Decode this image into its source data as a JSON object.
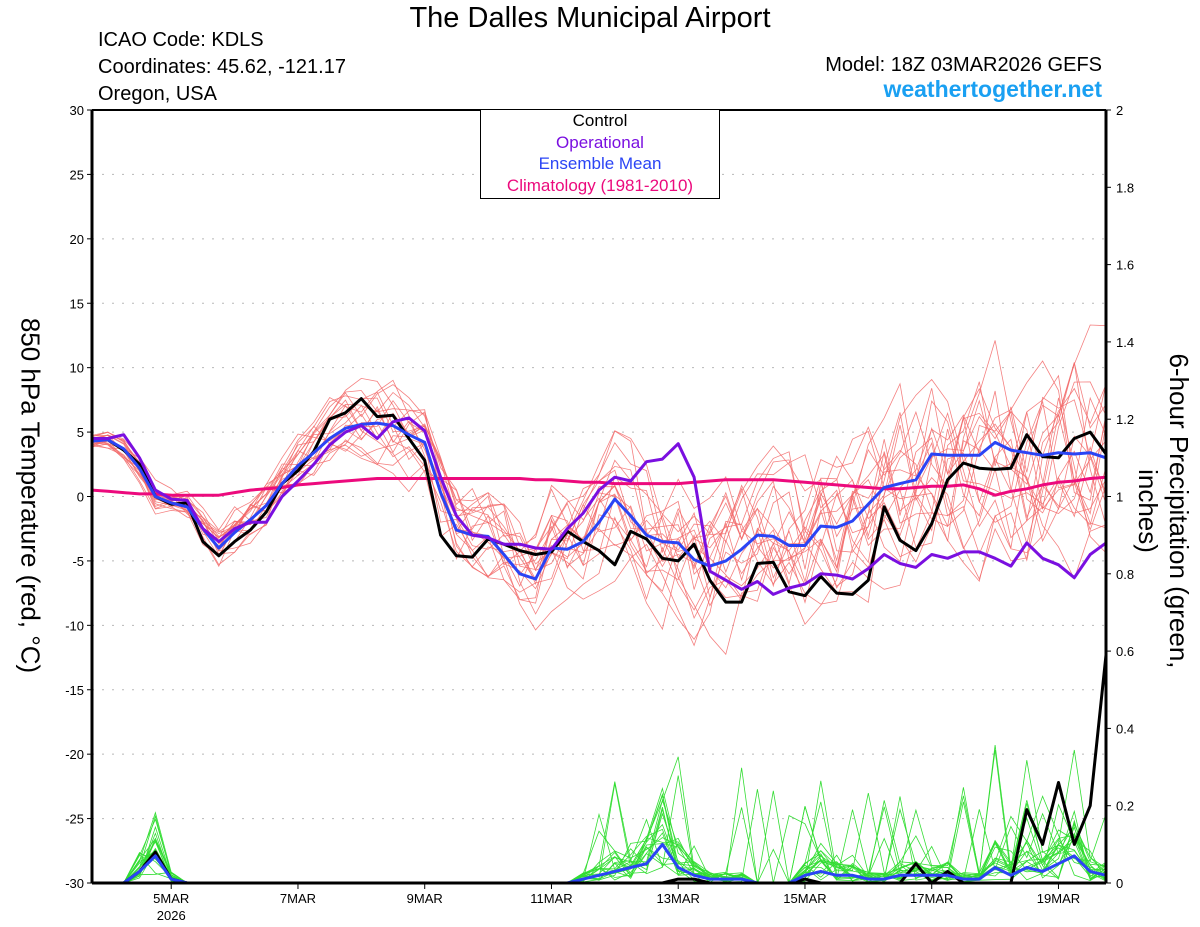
{
  "header": {
    "title": "The Dalles Municipal Airport",
    "icao": "ICAO Code: KDLS",
    "coordinates": "Coordinates: 45.62, -121.17",
    "region": "Oregon, USA",
    "model": "Model: 18Z 03MAR2026 GEFS",
    "site": "weathertogether.net"
  },
  "colors": {
    "control": "#000000",
    "operational": "#7a0fe0",
    "ensemble_mean": "#2a44f5",
    "climatology": "#ec0a7d",
    "members_temp": "#f26a6a",
    "members_precip": "#33dd33",
    "site": "#1aa0f2"
  },
  "chart_data": {
    "type": "line",
    "title": "The Dalles Municipal Airport",
    "ylabel": "850 hPa Temperature (red, °C)",
    "ylabel_right": "6-hour Precipitation (green, inches)",
    "ylim": [
      -30,
      30
    ],
    "ylim_right": [
      0,
      2
    ],
    "yticks": [
      "30",
      "25",
      "20",
      "15",
      "10",
      "5",
      "0",
      "-5",
      "-10",
      "-15",
      "-20",
      "-25",
      "-30"
    ],
    "yticks_right": [
      "2",
      "1.8",
      "1.6",
      "1.4",
      "1.2",
      "1",
      "0.8",
      "0.6",
      "0.4",
      "0.2",
      "0"
    ],
    "xticks": [
      {
        "label": "5MAR",
        "sub": "2026",
        "day": 5
      },
      {
        "label": "7MAR",
        "sub": "",
        "day": 7
      },
      {
        "label": "9MAR",
        "sub": "",
        "day": 9
      },
      {
        "label": "11MAR",
        "sub": "",
        "day": 11
      },
      {
        "label": "13MAR",
        "sub": "",
        "day": 13
      },
      {
        "label": "15MAR",
        "sub": "",
        "day": 15
      },
      {
        "label": "17MAR",
        "sub": "",
        "day": 17
      },
      {
        "label": "19MAR",
        "sub": "",
        "day": 19
      }
    ],
    "x_start_day": 3.75,
    "x_step_days": 0.25,
    "x_end_day": 19.75,
    "grid": true,
    "legend": {
      "position": "top-center",
      "entries": [
        {
          "label": "Control",
          "color_key": "control"
        },
        {
          "label": "Operational",
          "color_key": "operational"
        },
        {
          "label": "Ensemble Mean",
          "color_key": "ensemble_mean"
        },
        {
          "label": "Climatology (1981-2010)",
          "color_key": "climatology"
        }
      ]
    },
    "series": [
      {
        "name": "Control",
        "axis": "temp",
        "values": [
          4.4,
          4.4,
          3.6,
          2.5,
          0,
          -0.6,
          -0.5,
          -3.5,
          -4.6,
          -3.5,
          -2.6,
          -1.2,
          1,
          2,
          3.5,
          6,
          6.5,
          7.6,
          6.2,
          6.3,
          4.5,
          2.8,
          -3,
          -4.6,
          -4.7,
          -3.3,
          -3.7,
          -4.2,
          -4.5,
          -4.3,
          -2.7,
          -3.5,
          -4.2,
          -5.3,
          -2.7,
          -3.3,
          -4.8,
          -5,
          -3.7,
          -6.5,
          -8.2,
          -8.2,
          -5.2,
          -5.1,
          -7.4,
          -7.7,
          -6.2,
          -7.5,
          -7.6,
          -6.5,
          -0.8,
          -3.4,
          -4.2,
          -2.1,
          1.3,
          2.6,
          2.2,
          2.1,
          2.2,
          4.8,
          3.1,
          3,
          4.5,
          5,
          3.3
        ]
      },
      {
        "name": "Operational",
        "axis": "temp",
        "values": [
          4.5,
          4.5,
          4.8,
          3,
          0.5,
          -0.2,
          -0.3,
          -2.5,
          -3.5,
          -2.5,
          -2,
          -2,
          0,
          1.2,
          2.5,
          4,
          5,
          5.5,
          4.5,
          5.8,
          6.1,
          5.1,
          1.5,
          -1.5,
          -3,
          -3.2,
          -3.7,
          -3.7,
          -4,
          -4.1,
          -2.5,
          -1.3,
          0.5,
          1.5,
          1.2,
          2.7,
          2.9,
          4.1,
          1.5,
          -5.8,
          -6.5,
          -7.2,
          -6.6,
          -7.6,
          -7.1,
          -6.8,
          -6,
          -6.1,
          -6.4,
          -5.6,
          -4.5,
          -5.2,
          -5.5,
          -4.5,
          -4.8,
          -4.3,
          -4.3,
          -4.8,
          -5.4,
          -3.6,
          -4.8,
          -5.3,
          -6.3,
          -4.5,
          -3.6
        ]
      },
      {
        "name": "Ensemble Mean",
        "axis": "temp",
        "values": [
          4.3,
          4.4,
          3.7,
          2.2,
          0,
          -0.5,
          -0.8,
          -2.5,
          -4,
          -2.8,
          -1.8,
          -0.7,
          1,
          2.4,
          3.4,
          4.5,
          5.3,
          5.6,
          5.7,
          5.5,
          4.8,
          4.2,
          0.3,
          -2.6,
          -3,
          -3.1,
          -4.5,
          -6,
          -6.4,
          -4,
          -4.1,
          -3.5,
          -2,
          -0.2,
          -1.5,
          -3,
          -3.5,
          -3.6,
          -4.9,
          -5.4,
          -5,
          -4.1,
          -3,
          -3.1,
          -3.8,
          -3.8,
          -2.3,
          -2.4,
          -1.9,
          -0.6,
          0.7,
          1,
          1.3,
          3.3,
          3.2,
          3.2,
          3.2,
          4.2,
          3.6,
          3.4,
          3.2,
          3.4,
          3.3,
          3.4,
          3
        ]
      },
      {
        "name": "Climatology (1981-2010)",
        "axis": "temp",
        "values": [
          0.5,
          0.4,
          0.3,
          0.2,
          0.2,
          0.1,
          0.1,
          0.1,
          0.1,
          0.3,
          0.5,
          0.6,
          0.7,
          0.9,
          1,
          1.1,
          1.2,
          1.3,
          1.4,
          1.4,
          1.4,
          1.4,
          1.4,
          1.4,
          1.4,
          1.4,
          1.4,
          1.4,
          1.3,
          1.3,
          1.2,
          1.1,
          1.1,
          1.0,
          1.0,
          1.0,
          1.0,
          1.0,
          1.1,
          1.2,
          1.3,
          1.3,
          1.3,
          1.3,
          1.2,
          1.1,
          1.0,
          0.9,
          0.8,
          0.7,
          0.6,
          0.6,
          0.7,
          0.8,
          0.8,
          0.9,
          0.6,
          0.1,
          0.4,
          0.6,
          0.9,
          1.1,
          1.2,
          1.4,
          1.5
        ]
      },
      {
        "name": "Control Precip",
        "axis": "precip",
        "values": [
          0,
          0,
          0,
          0.03,
          0.08,
          0.01,
          0,
          0,
          0,
          0,
          0,
          0,
          0,
          0,
          0,
          0,
          0,
          0,
          0,
          0,
          0,
          0,
          0,
          0,
          0,
          0,
          0,
          0,
          0,
          0,
          0,
          0,
          0,
          0,
          0,
          0,
          0,
          0.01,
          0.01,
          0,
          0,
          0,
          0,
          0,
          0,
          0.01,
          0,
          0,
          0,
          0,
          0,
          0,
          0.05,
          0,
          0.03,
          0,
          0,
          0,
          0,
          0.19,
          0.1,
          0.26,
          0.1,
          0.2,
          0.59
        ]
      },
      {
        "name": "Ensemble Mean Precip",
        "axis": "precip",
        "values": [
          0,
          0,
          0,
          0.03,
          0.07,
          0.01,
          0,
          0,
          0,
          0,
          0,
          0,
          0,
          0,
          0,
          0,
          0,
          0,
          0,
          0,
          0,
          0,
          0,
          0,
          0,
          0,
          0,
          0,
          0,
          0,
          0,
          0.01,
          0.02,
          0.03,
          0.04,
          0.05,
          0.1,
          0.04,
          0.02,
          0.01,
          0.01,
          0.01,
          0,
          0,
          0,
          0.02,
          0.03,
          0.02,
          0.02,
          0.01,
          0.01,
          0.02,
          0.02,
          0.02,
          0.02,
          0.01,
          0.01,
          0.04,
          0.02,
          0.04,
          0.03,
          0.05,
          0.07,
          0.03,
          0.02
        ]
      }
    ]
  }
}
